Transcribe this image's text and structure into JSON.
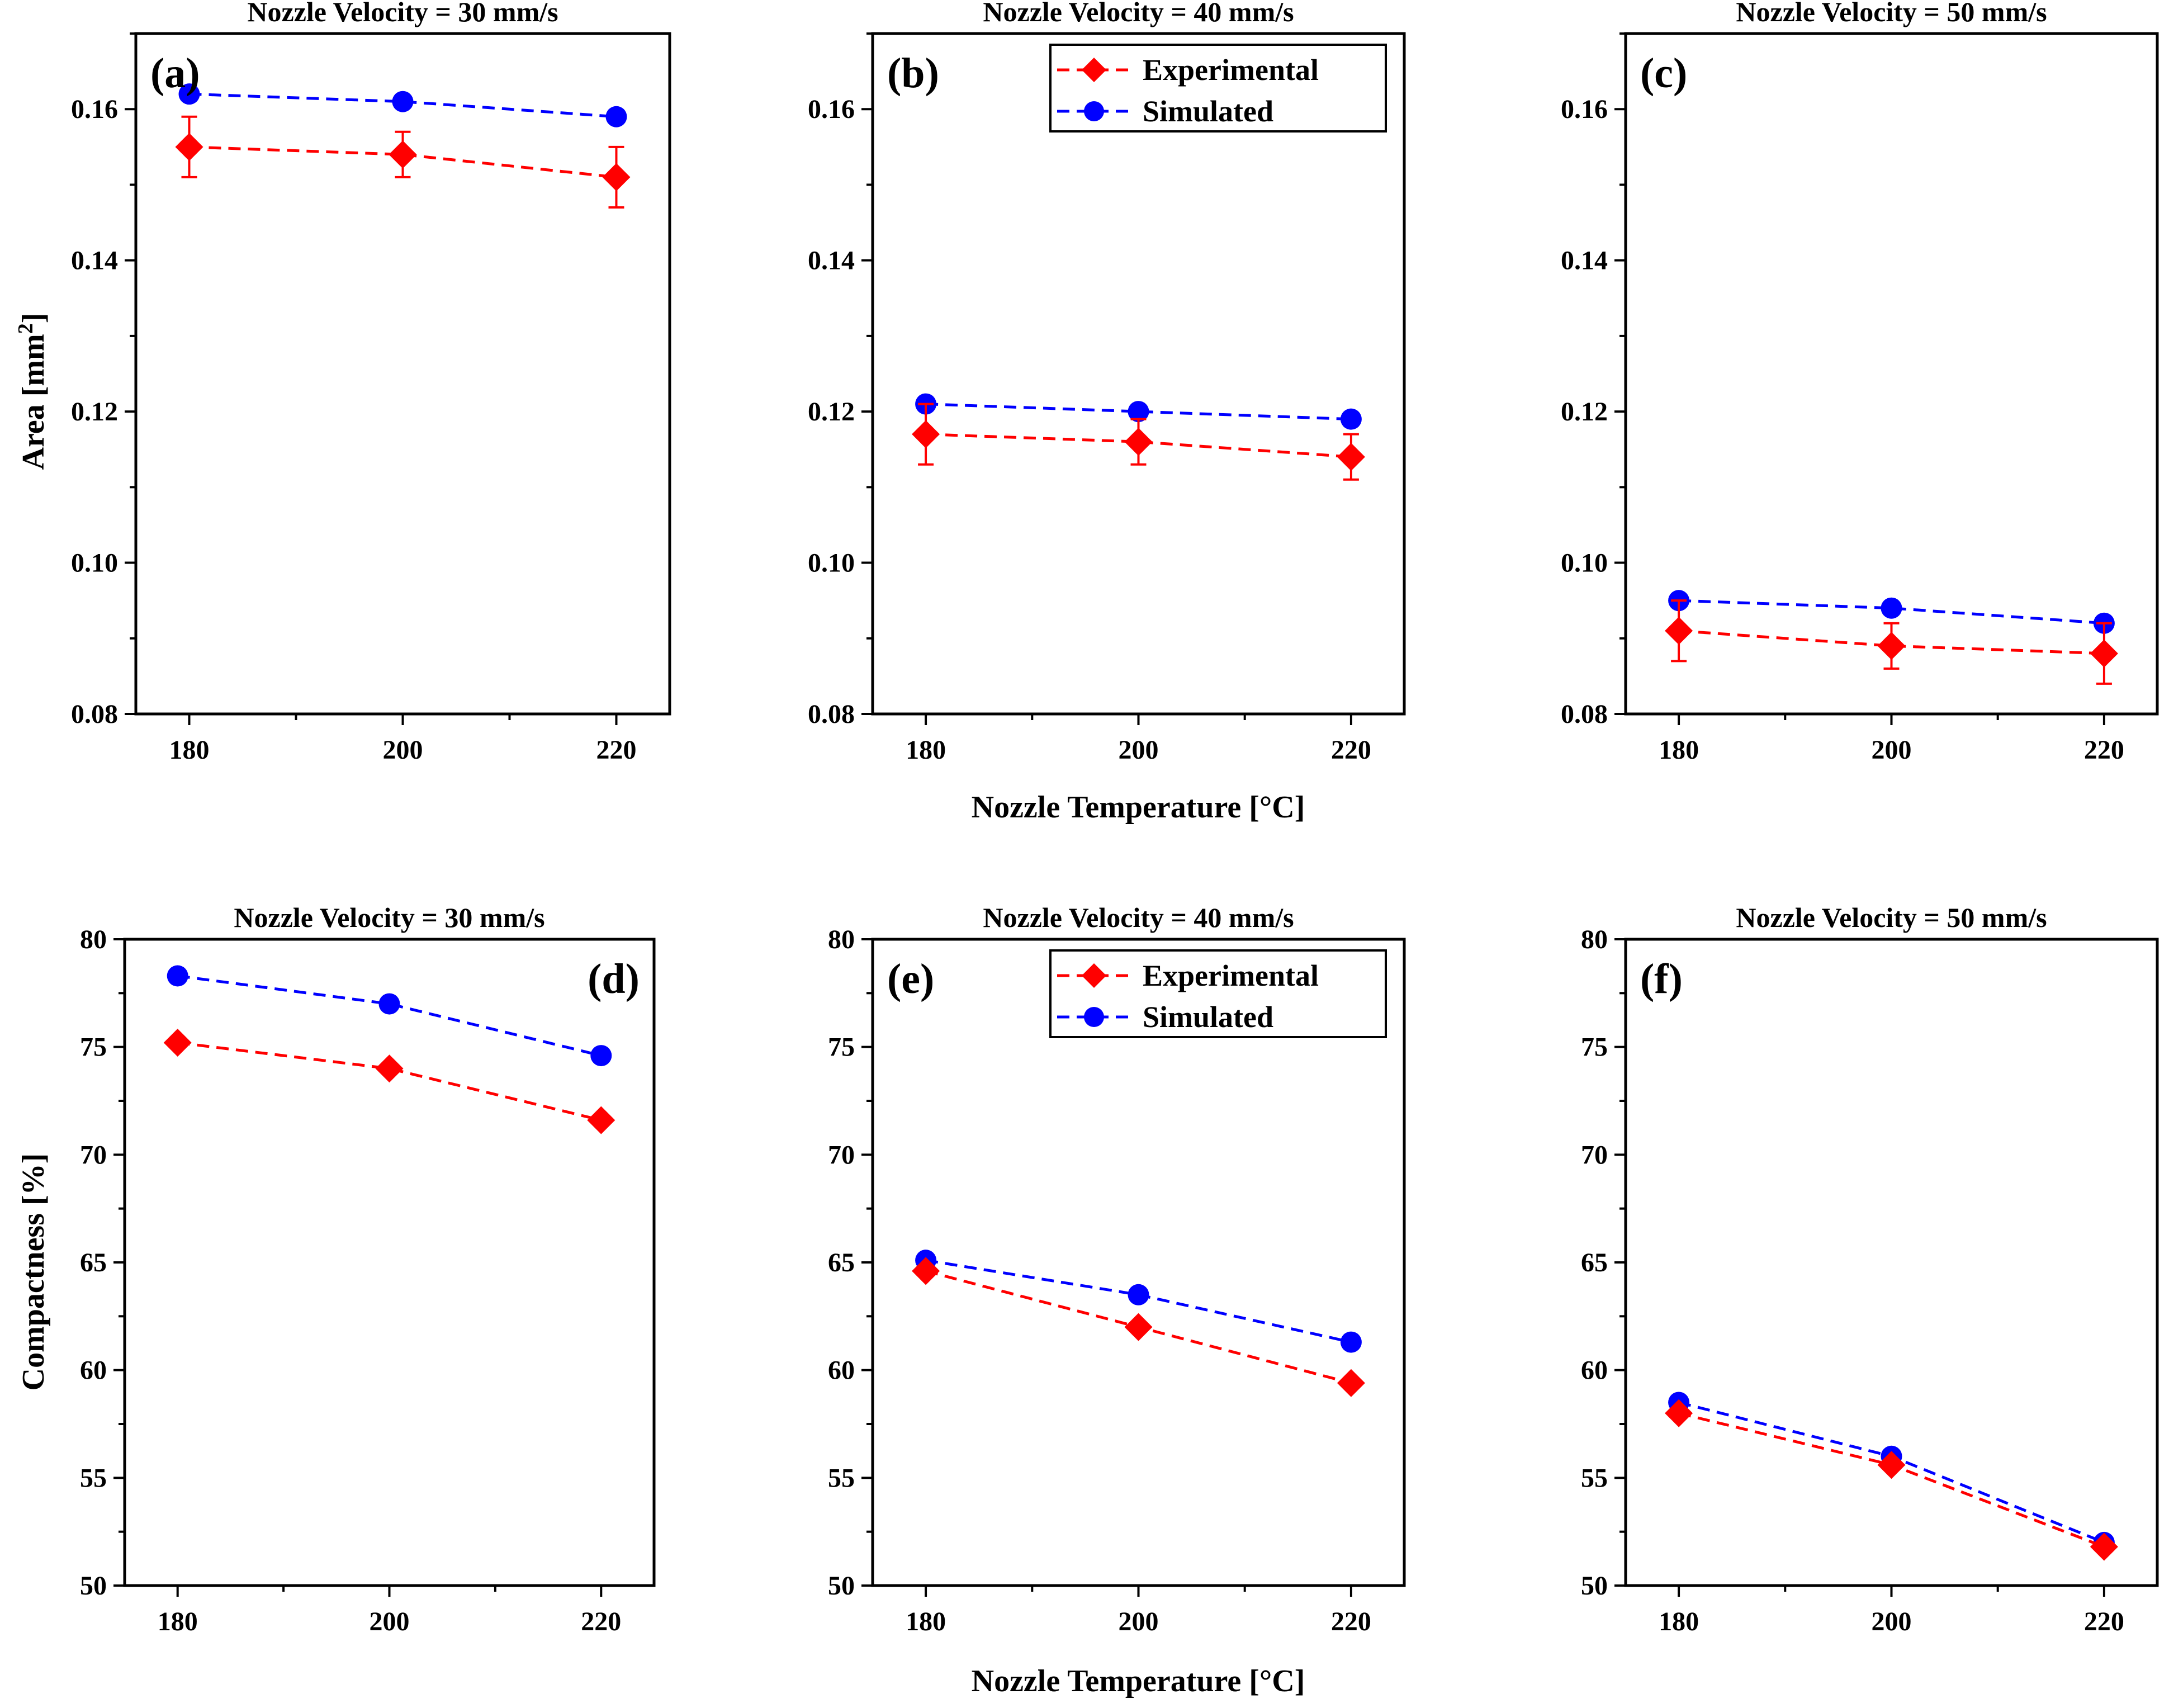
{
  "colors": {
    "experimental": "#ff0000",
    "simulated": "#0000ff",
    "axis": "#000000"
  },
  "shared_xlabel_top": "Nozzle Temperature [°C]",
  "shared_xlabel_bottom": "Nozzle Temperature [°C]",
  "ylabel_area": "Area [mm²]",
  "ylabel_compactness": "Compactness [%]",
  "chart_data": [
    {
      "type": "line",
      "panel": "(a)",
      "title": "Nozzle Velocity = 30 mm/s",
      "x": [
        180,
        200,
        220
      ],
      "xticks": [
        "180",
        "200",
        "220"
      ],
      "xlim": [
        175,
        225
      ],
      "ylim": [
        0.08,
        0.17
      ],
      "yticks": [
        0.08,
        0.1,
        0.12,
        0.14,
        0.16
      ],
      "ytick_labels": [
        "0.08",
        "0.10",
        "0.12",
        "0.14",
        "0.16"
      ],
      "ylabel": "Area [mm²]",
      "xlabel": "",
      "series": [
        {
          "name": "Experimental",
          "marker": "diamond",
          "values": [
            0.155,
            0.154,
            0.151
          ],
          "errors": [
            0.004,
            0.003,
            0.004
          ]
        },
        {
          "name": "Simulated",
          "marker": "circle",
          "values": [
            0.162,
            0.161,
            0.159
          ]
        }
      ],
      "legend": null
    },
    {
      "type": "line",
      "panel": "(b)",
      "title": "Nozzle Velocity = 40 mm/s",
      "x": [
        180,
        200,
        220
      ],
      "xticks": [
        "180",
        "200",
        "220"
      ],
      "xlim": [
        175,
        225
      ],
      "ylim": [
        0.08,
        0.17
      ],
      "yticks": [
        0.08,
        0.1,
        0.12,
        0.14,
        0.16
      ],
      "ytick_labels": [
        "0.08",
        "0.10",
        "0.12",
        "0.14",
        "0.16"
      ],
      "ylabel": "",
      "xlabel": "",
      "series": [
        {
          "name": "Experimental",
          "marker": "diamond",
          "values": [
            0.117,
            0.116,
            0.114
          ],
          "errors": [
            0.004,
            0.003,
            0.003
          ]
        },
        {
          "name": "Simulated",
          "marker": "circle",
          "values": [
            0.121,
            0.12,
            0.119
          ]
        }
      ],
      "legend": [
        "Experimental",
        "Simulated"
      ]
    },
    {
      "type": "line",
      "panel": "(c)",
      "title": "Nozzle Velocity = 50 mm/s",
      "x": [
        180,
        200,
        220
      ],
      "xticks": [
        "180",
        "200",
        "220"
      ],
      "xlim": [
        175,
        225
      ],
      "ylim": [
        0.08,
        0.17
      ],
      "yticks": [
        0.08,
        0.1,
        0.12,
        0.14,
        0.16
      ],
      "ytick_labels": [
        "0.08",
        "0.10",
        "0.12",
        "0.14",
        "0.16"
      ],
      "ylabel": "",
      "xlabel": "",
      "series": [
        {
          "name": "Experimental",
          "marker": "diamond",
          "values": [
            0.091,
            0.089,
            0.088
          ],
          "errors": [
            0.004,
            0.003,
            0.004
          ]
        },
        {
          "name": "Simulated",
          "marker": "circle",
          "values": [
            0.095,
            0.094,
            0.092
          ]
        }
      ],
      "legend": null
    },
    {
      "type": "line",
      "panel": "(d)",
      "title": "Nozzle Velocity = 30 mm/s",
      "x": [
        180,
        200,
        220
      ],
      "xticks": [
        "180",
        "200",
        "220"
      ],
      "xlim": [
        175,
        225
      ],
      "ylim": [
        50,
        80
      ],
      "yticks": [
        50,
        55,
        60,
        65,
        70,
        75,
        80
      ],
      "ytick_labels": [
        "50",
        "55",
        "60",
        "65",
        "70",
        "75",
        "80"
      ],
      "ylabel": "Compactness [%]",
      "xlabel": "",
      "series": [
        {
          "name": "Experimental",
          "marker": "diamond",
          "values": [
            75.2,
            74.0,
            71.6
          ]
        },
        {
          "name": "Simulated",
          "marker": "circle",
          "values": [
            78.3,
            77.0,
            74.6
          ]
        }
      ],
      "legend": null
    },
    {
      "type": "line",
      "panel": "(e)",
      "title": "Nozzle Velocity = 40 mm/s",
      "x": [
        180,
        200,
        220
      ],
      "xticks": [
        "180",
        "200",
        "220"
      ],
      "xlim": [
        175,
        225
      ],
      "ylim": [
        50,
        80
      ],
      "yticks": [
        50,
        55,
        60,
        65,
        70,
        75,
        80
      ],
      "ytick_labels": [
        "50",
        "55",
        "60",
        "65",
        "70",
        "75",
        "80"
      ],
      "ylabel": "",
      "xlabel": "",
      "series": [
        {
          "name": "Experimental",
          "marker": "diamond",
          "values": [
            64.6,
            62.0,
            59.4
          ]
        },
        {
          "name": "Simulated",
          "marker": "circle",
          "values": [
            65.1,
            63.5,
            61.3
          ]
        }
      ],
      "legend": [
        "Experimental",
        "Simulated"
      ]
    },
    {
      "type": "line",
      "panel": "(f)",
      "title": "Nozzle Velocity = 50 mm/s",
      "x": [
        180,
        200,
        220
      ],
      "xticks": [
        "180",
        "200",
        "220"
      ],
      "xlim": [
        175,
        225
      ],
      "ylim": [
        50,
        80
      ],
      "yticks": [
        50,
        55,
        60,
        65,
        70,
        75,
        80
      ],
      "ytick_labels": [
        "50",
        "55",
        "60",
        "65",
        "70",
        "75",
        "80"
      ],
      "ylabel": "",
      "xlabel": "",
      "series": [
        {
          "name": "Experimental",
          "marker": "diamond",
          "values": [
            58.0,
            55.6,
            51.8
          ]
        },
        {
          "name": "Simulated",
          "marker": "circle",
          "values": [
            58.5,
            56.0,
            52.0
          ]
        }
      ],
      "legend": null
    }
  ]
}
